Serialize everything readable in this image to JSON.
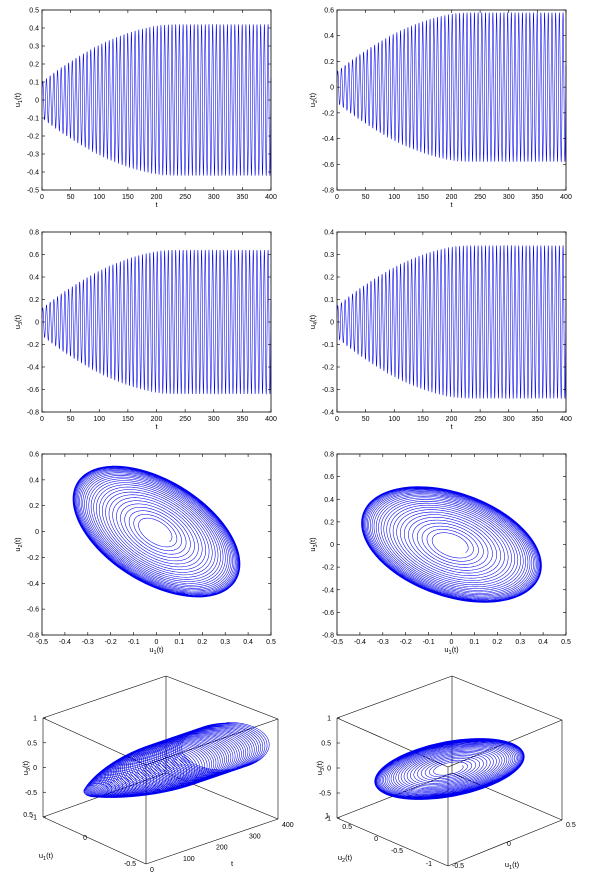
{
  "panels": [
    {
      "id": "p1",
      "xlabel": "t",
      "ylabel": "u1(t)",
      "yticks": [
        "0.5",
        "0.4",
        "0.3",
        "0.2",
        "0.1",
        "0",
        "-0.1",
        "-0.2",
        "-0.3",
        "-0.4",
        "-0.5"
      ],
      "xticks": [
        "0",
        "50",
        "100",
        "150",
        "200",
        "250",
        "300",
        "350",
        "400"
      ]
    },
    {
      "id": "p2",
      "xlabel": "t",
      "ylabel": "u2(t)",
      "yticks": [
        "0.6",
        "0.4",
        "0.2",
        "0",
        "-0.2",
        "-0.4",
        "-0.6",
        "-0.8"
      ],
      "xticks": [
        "0",
        "50",
        "100",
        "150",
        "200",
        "250",
        "300",
        "350",
        "400"
      ]
    },
    {
      "id": "p3",
      "xlabel": "t",
      "ylabel": "u3(t)",
      "yticks": [
        "0.8",
        "0.6",
        "0.4",
        "0.2",
        "0",
        "-0.2",
        "-0.4",
        "-0.6",
        "-0.8"
      ],
      "xticks": [
        "0",
        "50",
        "100",
        "150",
        "200",
        "250",
        "300",
        "350",
        "400"
      ]
    },
    {
      "id": "p4",
      "xlabel": "t",
      "ylabel": "u4(t)",
      "yticks": [
        "0.4",
        "0.3",
        "0.2",
        "0.1",
        "0",
        "-0.1",
        "-0.2",
        "-0.3",
        "-0.4"
      ],
      "xticks": [
        "0",
        "50",
        "100",
        "150",
        "200",
        "250",
        "300",
        "350",
        "400"
      ]
    },
    {
      "id": "p5",
      "xlabel": "u1(t)",
      "ylabel": "u2(t)",
      "yticks": [
        "0.6",
        "0.4",
        "0.2",
        "0",
        "-0.2",
        "-0.4",
        "-0.6",
        "-0.8"
      ],
      "xticks": [
        "-0.5",
        "-0.4",
        "-0.3",
        "-0.2",
        "-0.1",
        "0",
        "0.1",
        "0.2",
        "0.3",
        "0.4",
        "0.5"
      ]
    },
    {
      "id": "p6",
      "xlabel": "u1(t)",
      "ylabel": "u3(t)",
      "yticks": [
        "0.8",
        "0.6",
        "0.4",
        "0.2",
        "0",
        "-0.2",
        "-0.4",
        "-0.6",
        "-0.8"
      ],
      "xticks": [
        "-0.5",
        "-0.4",
        "-0.3",
        "-0.2",
        "-0.1",
        "0",
        "0.1",
        "0.2",
        "0.3",
        "0.4",
        "0.5"
      ]
    },
    {
      "id": "p7",
      "xlabel": "t",
      "ylabel": "u1(t)",
      "zlabel": "u3(t)",
      "zticks": [
        "1",
        "0.5",
        "0",
        "-0.5",
        "-1"
      ],
      "yticks": [
        "0.5",
        "0",
        "-0.5"
      ],
      "xticks": [
        "0",
        "100",
        "200",
        "300",
        "400"
      ]
    },
    {
      "id": "p8",
      "xlabel": "u1(t)",
      "ylabel": "u2(t)",
      "zlabel": "u3(t)",
      "zticks": [
        "1",
        "0.5",
        "0",
        "-0.5",
        "-1"
      ],
      "yticks": [
        "1",
        "0.5",
        "0",
        "-0.5",
        "-1"
      ],
      "xticks": [
        "-0.5",
        "0",
        "0.5"
      ]
    }
  ],
  "chart_data": [
    {
      "type": "line",
      "xlabel": "t",
      "ylabel": "u1(t)",
      "xlim": [
        0,
        400
      ],
      "ylim": [
        -0.5,
        0.5
      ],
      "series": [
        {
          "amplitude_start": 0.1,
          "amplitude_end": 0.42,
          "cycles": 62
        }
      ]
    },
    {
      "type": "line",
      "xlabel": "t",
      "ylabel": "u2(t)",
      "xlim": [
        0,
        400
      ],
      "ylim": [
        -0.8,
        0.6
      ],
      "series": [
        {
          "amplitude_start": 0.12,
          "amplitude_end": 0.58,
          "cycles": 62
        }
      ]
    },
    {
      "type": "line",
      "xlabel": "t",
      "ylabel": "u3(t)",
      "xlim": [
        0,
        400
      ],
      "ylim": [
        -0.8,
        0.8
      ],
      "series": [
        {
          "amplitude_start": 0.12,
          "amplitude_end": 0.64,
          "cycles": 62
        }
      ]
    },
    {
      "type": "line",
      "xlabel": "t",
      "ylabel": "u4(t)",
      "xlim": [
        0,
        400
      ],
      "ylim": [
        -0.4,
        0.4
      ],
      "series": [
        {
          "amplitude_start": 0.07,
          "amplitude_end": 0.34,
          "cycles": 62
        }
      ]
    },
    {
      "type": "line",
      "xlabel": "u1(t)",
      "ylabel": "u2(t)",
      "xlim": [
        -0.5,
        0.5
      ],
      "ylim": [
        -0.8,
        0.6
      ],
      "series": [
        {
          "center": [
            0,
            0
          ],
          "tilt_deg": -45,
          "semi_major_end": 0.62,
          "semi_minor_end": 0.36
        }
      ]
    },
    {
      "type": "line",
      "xlabel": "u1(t)",
      "ylabel": "u3(t)",
      "xlim": [
        -0.5,
        0.5
      ],
      "ylim": [
        -0.8,
        0.8
      ],
      "series": [
        {
          "center": [
            0,
            0
          ],
          "tilt_deg": -40,
          "semi_major_end": 0.62,
          "semi_minor_end": 0.42
        }
      ]
    },
    {
      "type": "line",
      "xlabel": "t",
      "ylabel": "u1(t)",
      "zlabel": "u3(t)",
      "xlim": [
        0,
        400
      ],
      "ylim": [
        -0.5,
        0.5
      ],
      "zlim": [
        -1,
        1
      ],
      "series": [
        {
          "u1_amp_end": 0.42,
          "u3_amp_end": 0.64
        }
      ]
    },
    {
      "type": "line",
      "xlabel": "u1(t)",
      "ylabel": "u2(t)",
      "zlabel": "u3(t)",
      "xlim": [
        -0.5,
        0.5
      ],
      "ylim": [
        -1,
        1
      ],
      "zlim": [
        -1,
        1
      ],
      "series": [
        {
          "u1_amp_end": 0.42,
          "u2_amp_end": 0.58,
          "u3_amp_end": 0.64
        }
      ]
    }
  ],
  "colors": {
    "line": "#0000ee",
    "axes": "#000000",
    "background": "#ffffff"
  }
}
